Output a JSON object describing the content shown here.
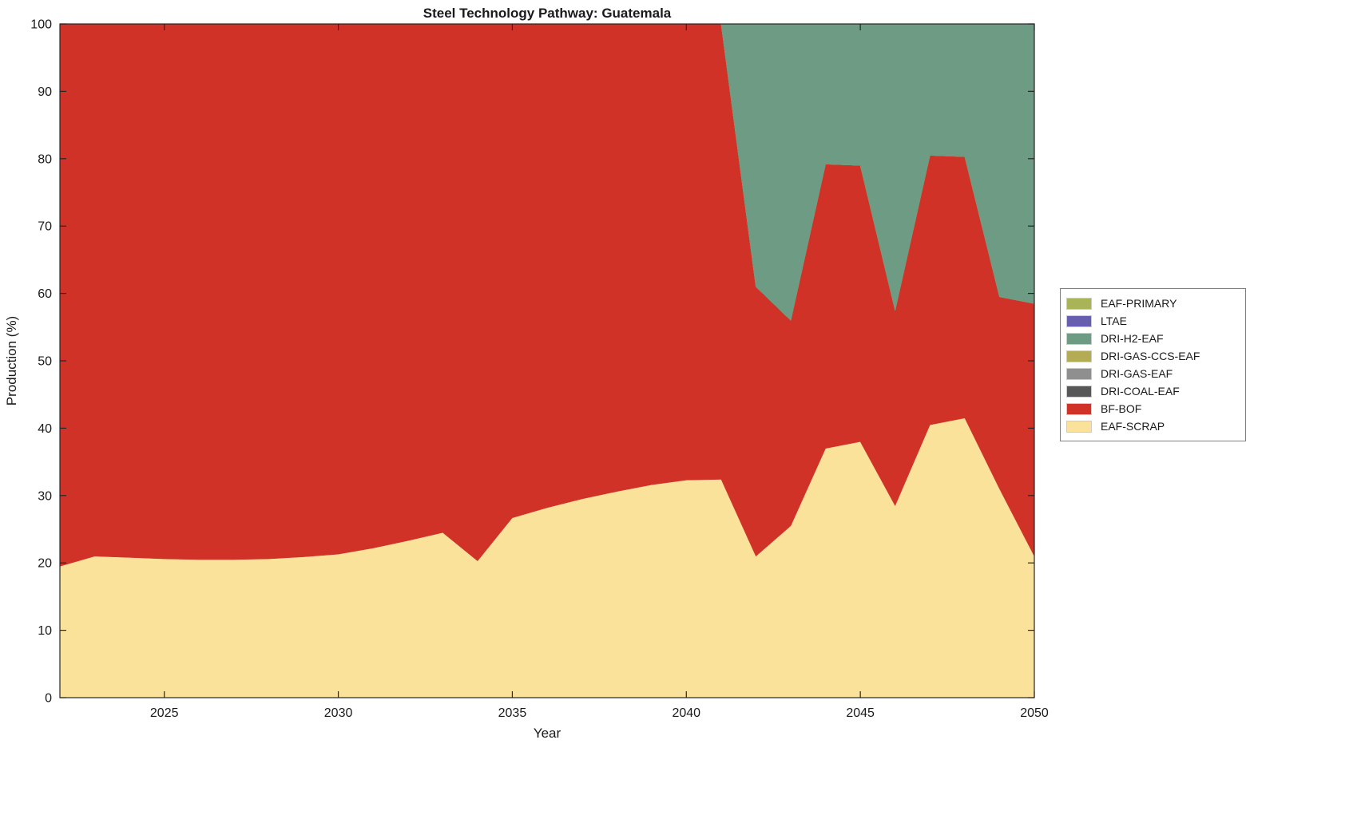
{
  "chart_data": {
    "type": "area",
    "stacked": true,
    "title": "Steel Technology Pathway: Guatemala",
    "xlabel": "Year",
    "ylabel": "Production (%)",
    "xlim": [
      2022,
      2050
    ],
    "ylim": [
      0,
      100
    ],
    "xticks": [
      2025,
      2030,
      2035,
      2040,
      2045,
      2050
    ],
    "yticks": [
      0,
      10,
      20,
      30,
      40,
      50,
      60,
      70,
      80,
      90,
      100
    ],
    "grid": false,
    "legend_position": "right-outside",
    "x": [
      2022,
      2023,
      2024,
      2025,
      2026,
      2027,
      2028,
      2029,
      2030,
      2031,
      2032,
      2033,
      2034,
      2035,
      2036,
      2037,
      2038,
      2039,
      2040,
      2041,
      2042,
      2043,
      2044,
      2045,
      2046,
      2047,
      2048,
      2049,
      2050
    ],
    "series": [
      {
        "name": "EAF-SCRAP",
        "color": "#FBE29A",
        "values": [
          19.5,
          21.0,
          20.8,
          20.6,
          20.5,
          20.5,
          20.6,
          20.9,
          21.3,
          22.2,
          23.3,
          24.5,
          20.3,
          26.7,
          28.2,
          29.5,
          30.6,
          31.6,
          32.3,
          32.4,
          21.0,
          25.5,
          37.0,
          38.0,
          28.5,
          40.5,
          41.5,
          31.0,
          21.0
        ]
      },
      {
        "name": "BF-BOF",
        "color": "#D13228",
        "values": [
          80.5,
          79.0,
          79.2,
          79.4,
          79.5,
          79.5,
          79.4,
          79.1,
          78.7,
          77.8,
          76.7,
          75.5,
          79.7,
          73.3,
          71.8,
          70.5,
          69.4,
          68.4,
          67.7,
          67.6,
          40.0,
          30.5,
          42.2,
          41.0,
          29.0,
          40.0,
          38.8,
          28.5,
          37.5
        ]
      },
      {
        "name": "DRI-COAL-EAF",
        "color": "#575757",
        "values": [
          0,
          0,
          0,
          0,
          0,
          0,
          0,
          0,
          0,
          0,
          0,
          0,
          0,
          0,
          0,
          0,
          0,
          0,
          0,
          0,
          0,
          0,
          0,
          0,
          0,
          0,
          0,
          0,
          0
        ]
      },
      {
        "name": "DRI-GAS-EAF",
        "color": "#8F8F8F",
        "values": [
          0,
          0,
          0,
          0,
          0,
          0,
          0,
          0,
          0,
          0,
          0,
          0,
          0,
          0,
          0,
          0,
          0,
          0,
          0,
          0,
          0,
          0,
          0,
          0,
          0,
          0,
          0,
          0,
          0
        ]
      },
      {
        "name": "DRI-GAS-CCS-EAF",
        "color": "#B3AC55",
        "values": [
          0,
          0,
          0,
          0,
          0,
          0,
          0,
          0,
          0,
          0,
          0,
          0,
          0,
          0,
          0,
          0,
          0,
          0,
          0,
          0,
          0,
          0,
          0,
          0,
          0,
          0,
          0,
          0,
          0
        ]
      },
      {
        "name": "DRI-H2-EAF",
        "color": "#6D9B83",
        "values": [
          0,
          0,
          0,
          0,
          0,
          0,
          0,
          0,
          0,
          0,
          0,
          0,
          0,
          0,
          0,
          0,
          0,
          0,
          0,
          0,
          39.0,
          44.0,
          20.8,
          21.0,
          42.5,
          19.5,
          19.7,
          40.5,
          41.5
        ]
      },
      {
        "name": "LTAE",
        "color": "#685EB0",
        "values": [
          0,
          0,
          0,
          0,
          0,
          0,
          0,
          0,
          0,
          0,
          0,
          0,
          0,
          0,
          0,
          0,
          0,
          0,
          0,
          0,
          0,
          0,
          0,
          0,
          0,
          0,
          0,
          0,
          0
        ]
      },
      {
        "name": "EAF-PRIMARY",
        "color": "#A9B457",
        "values": [
          0,
          0,
          0,
          0,
          0,
          0,
          0,
          0,
          0,
          0,
          0,
          0,
          0,
          0,
          0,
          0,
          0,
          0,
          0,
          0,
          0,
          0,
          0,
          0,
          0,
          0,
          0,
          0,
          0
        ]
      }
    ]
  }
}
